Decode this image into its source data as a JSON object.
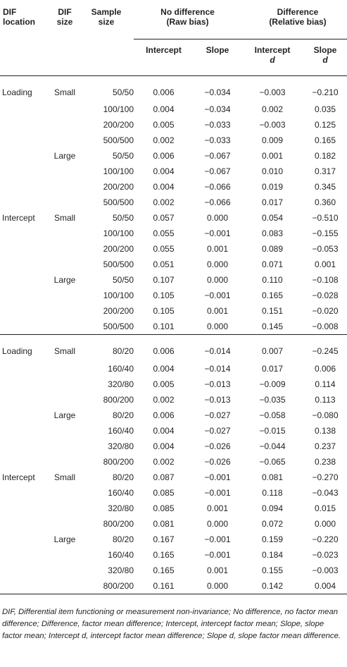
{
  "header": {
    "col1": [
      "DIF",
      "location"
    ],
    "col2": [
      "DIF",
      "size"
    ],
    "col3": [
      "Sample",
      "size"
    ],
    "group1": [
      "No difference",
      "(Raw bias)"
    ],
    "group2": [
      "Difference",
      "(Relative bias)"
    ],
    "sub_intercept": "Intercept",
    "sub_slope": "Slope",
    "sub_intercept_d": [
      "Intercept",
      "d"
    ],
    "sub_slope_d": [
      "Slope",
      "d"
    ]
  },
  "blocks": [
    {
      "rows": [
        [
          "Loading",
          "Small",
          "50/50",
          "0.006",
          "−0.034",
          "−0.003",
          "−0.210"
        ],
        [
          "",
          "",
          "100/100",
          "0.004",
          "−0.034",
          "0.002",
          "0.035"
        ],
        [
          "",
          "",
          "200/200",
          "0.005",
          "−0.033",
          "−0.003",
          "0.125"
        ],
        [
          "",
          "",
          "500/500",
          "0.002",
          "−0.033",
          "0.009",
          "0.165"
        ],
        [
          "",
          "Large",
          "50/50",
          "0.006",
          "−0.067",
          "0.001",
          "0.182"
        ],
        [
          "",
          "",
          "100/100",
          "0.004",
          "−0.067",
          "0.010",
          "0.317"
        ],
        [
          "",
          "",
          "200/200",
          "0.004",
          "−0.066",
          "0.019",
          "0.345"
        ],
        [
          "",
          "",
          "500/500",
          "0.002",
          "−0.066",
          "0.017",
          "0.360"
        ],
        [
          "Intercept",
          "Small",
          "50/50",
          "0.057",
          "0.000",
          "0.054",
          "−0.510"
        ],
        [
          "",
          "",
          "100/100",
          "0.055",
          "−0.001",
          "0.083",
          "−0.155"
        ],
        [
          "",
          "",
          "200/200",
          "0.055",
          "0.001",
          "0.089",
          "−0.053"
        ],
        [
          "",
          "",
          "500/500",
          "0.051",
          "0.000",
          "0.071",
          "0.001"
        ],
        [
          "",
          "Large",
          "50/50",
          "0.107",
          "0.000",
          "0.110",
          "−0.108"
        ],
        [
          "",
          "",
          "100/100",
          "0.105",
          "−0.001",
          "0.165",
          "−0.028"
        ],
        [
          "",
          "",
          "200/200",
          "0.105",
          "0.001",
          "0.151",
          "−0.020"
        ],
        [
          "",
          "",
          "500/500",
          "0.101",
          "0.000",
          "0.145",
          "−0.008"
        ]
      ]
    },
    {
      "rows": [
        [
          "Loading",
          "Small",
          "80/20",
          "0.006",
          "−0.014",
          "0.007",
          "−0.245"
        ],
        [
          "",
          "",
          "160/40",
          "0.004",
          "−0.014",
          "0.017",
          "0.006"
        ],
        [
          "",
          "",
          "320/80",
          "0.005",
          "−0.013",
          "−0.009",
          "0.114"
        ],
        [
          "",
          "",
          "800/200",
          "0.002",
          "−0.013",
          "−0.035",
          "0.113"
        ],
        [
          "",
          "Large",
          "80/20",
          "0.006",
          "−0.027",
          "−0.058",
          "−0.080"
        ],
        [
          "",
          "",
          "160/40",
          "0.004",
          "−0.027",
          "−0.015",
          "0.138"
        ],
        [
          "",
          "",
          "320/80",
          "0.004",
          "−0.026",
          "−0.044",
          "0.237"
        ],
        [
          "",
          "",
          "800/200",
          "0.002",
          "−0.026",
          "−0.065",
          "0.238"
        ],
        [
          "Intercept",
          "Small",
          "80/20",
          "0.087",
          "−0.001",
          "0.081",
          "−0.270"
        ],
        [
          "",
          "",
          "160/40",
          "0.085",
          "−0.001",
          "0.118",
          "−0.043"
        ],
        [
          "",
          "",
          "320/80",
          "0.085",
          "0.001",
          "0.094",
          "0.015"
        ],
        [
          "",
          "",
          "800/200",
          "0.081",
          "0.000",
          "0.072",
          "0.000"
        ],
        [
          "",
          "Large",
          "80/20",
          "0.167",
          "−0.001",
          "0.159",
          "−0.220"
        ],
        [
          "",
          "",
          "160/40",
          "0.165",
          "−0.001",
          "0.184",
          "−0.023"
        ],
        [
          "",
          "",
          "320/80",
          "0.165",
          "0.001",
          "0.155",
          "−0.003"
        ],
        [
          "",
          "",
          "800/200",
          "0.161",
          "0.000",
          "0.142",
          "0.004"
        ]
      ]
    }
  ],
  "footnote": "DIF, Differential item functioning or measurement non-invariance; No difference, no factor mean difference; Difference, factor mean difference; Intercept, intercept factor mean; Slope, slope factor mean; Intercept d, intercept factor mean difference; Slope d, slope factor mean difference."
}
